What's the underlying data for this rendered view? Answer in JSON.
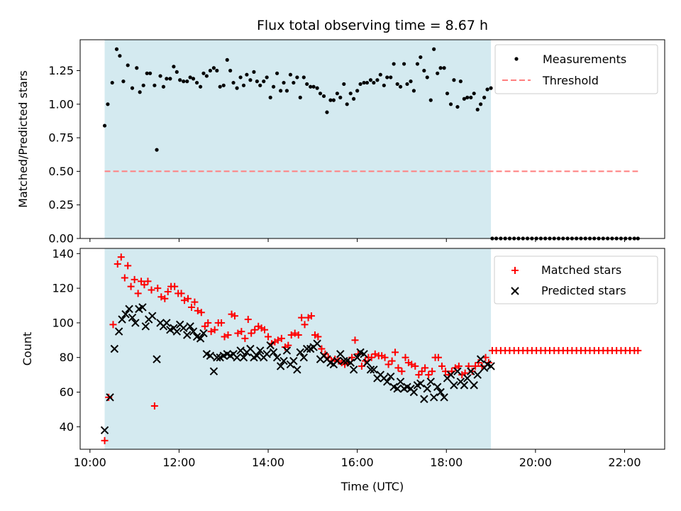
{
  "chart_data": {
    "type": "scatter",
    "title": "Flux total observing time = 8.67 h",
    "xlabel": "Time (UTC)",
    "x_unit": "hours UTC",
    "xlim": [
      9.78,
      22.9
    ],
    "xticks": [
      10,
      12,
      14,
      16,
      18,
      20,
      22
    ],
    "xtick_labels": [
      "10:00",
      "12:00",
      "14:00",
      "16:00",
      "18:00",
      "20:00",
      "22:00"
    ],
    "observing_window": [
      10.33,
      19.0
    ],
    "observing_window_color": "#d4eaf0",
    "panels": [
      {
        "ylabel": "Matched/Predicted stars",
        "ylim": [
          0,
          1.48
        ],
        "yticks": [
          0,
          0.25,
          0.5,
          0.75,
          1.0,
          1.25
        ],
        "ytick_labels": [
          "0.00",
          "0.25",
          "0.50",
          "0.75",
          "1.00",
          "1.25"
        ],
        "legend_position": "upper right",
        "series": [
          {
            "name": "Measurements",
            "marker": "dot",
            "color": "#000000",
            "x": [
              10.33,
              10.4,
              10.5,
              10.6,
              10.67,
              10.75,
              10.85,
              10.95,
              11.05,
              11.12,
              11.2,
              11.28,
              11.35,
              11.45,
              11.5,
              11.58,
              11.65,
              11.72,
              11.8,
              11.88,
              11.95,
              12.02,
              12.1,
              12.18,
              12.25,
              12.32,
              12.4,
              12.48,
              12.55,
              12.62,
              12.7,
              12.78,
              12.85,
              12.92,
              13.0,
              13.08,
              13.15,
              13.22,
              13.3,
              13.38,
              13.45,
              13.52,
              13.6,
              13.68,
              13.75,
              13.82,
              13.9,
              13.97,
              14.05,
              14.12,
              14.2,
              14.28,
              14.35,
              14.42,
              14.5,
              14.57,
              14.65,
              14.72,
              14.8,
              14.87,
              14.95,
              15.02,
              15.1,
              15.17,
              15.25,
              15.32,
              15.4,
              15.47,
              15.55,
              15.62,
              15.7,
              15.77,
              15.85,
              15.92,
              16.0,
              16.07,
              16.15,
              16.22,
              16.3,
              16.37,
              16.45,
              16.52,
              16.6,
              16.67,
              16.75,
              16.82,
              16.9,
              16.97,
              17.05,
              17.12,
              17.2,
              17.27,
              17.35,
              17.42,
              17.5,
              17.57,
              17.65,
              17.72,
              17.8,
              17.87,
              17.95,
              18.02,
              18.1,
              18.17,
              18.25,
              18.32,
              18.4,
              18.47,
              18.55,
              18.62,
              18.7,
              18.77,
              18.85,
              18.92,
              19.0
            ],
            "y": [
              0.84,
              1.0,
              1.16,
              1.41,
              1.36,
              1.17,
              1.29,
              1.12,
              1.27,
              1.09,
              1.14,
              1.23,
              1.23,
              1.14,
              0.66,
              1.21,
              1.13,
              1.19,
              1.19,
              1.28,
              1.24,
              1.18,
              1.17,
              1.17,
              1.2,
              1.19,
              1.16,
              1.13,
              1.23,
              1.21,
              1.25,
              1.27,
              1.25,
              1.13,
              1.14,
              1.33,
              1.25,
              1.16,
              1.12,
              1.2,
              1.14,
              1.22,
              1.18,
              1.24,
              1.17,
              1.14,
              1.17,
              1.2,
              1.05,
              1.13,
              1.23,
              1.1,
              1.16,
              1.1,
              1.22,
              1.16,
              1.2,
              1.05,
              1.2,
              1.15,
              1.13,
              1.13,
              1.12,
              1.08,
              1.06,
              0.94,
              1.03,
              1.03,
              1.08,
              1.05,
              1.15,
              1.0,
              1.08,
              1.04,
              1.1,
              1.15,
              1.16,
              1.16,
              1.18,
              1.16,
              1.18,
              1.22,
              1.14,
              1.2,
              1.2,
              1.3,
              1.15,
              1.13,
              1.3,
              1.15,
              1.17,
              1.1,
              1.3,
              1.35,
              1.25,
              1.2,
              1.03,
              1.41,
              1.23,
              1.27,
              1.27,
              1.08,
              1.0,
              1.18,
              0.98,
              1.17,
              1.04,
              1.05,
              1.05,
              1.08,
              0.96,
              1.0,
              1.05,
              1.11,
              1.12
            ],
            "x_after": [
              19.03,
              19.12,
              19.22,
              19.32,
              19.42,
              19.52,
              19.62,
              19.72,
              19.82,
              19.92,
              20.02,
              20.12,
              20.22,
              20.32,
              20.42,
              20.52,
              20.62,
              20.72,
              20.82,
              20.92,
              21.02,
              21.12,
              21.22,
              21.32,
              21.42,
              21.52,
              21.62,
              21.72,
              21.82,
              21.92,
              22.02,
              22.12,
              22.22,
              22.3
            ],
            "y_after": 0
          },
          {
            "name": "Threshold",
            "marker": "dashed-line",
            "color": "#ff7f7f",
            "x": [
              10.33,
              22.3
            ],
            "y": [
              0.5,
              0.5
            ]
          }
        ],
        "legend": [
          {
            "label": "Measurements",
            "icon": "dot"
          },
          {
            "label": "Threshold",
            "icon": "dashed-line"
          }
        ]
      },
      {
        "ylabel": "Count",
        "ylim": [
          27,
          143
        ],
        "yticks": [
          40,
          60,
          80,
          100,
          120,
          140
        ],
        "ytick_labels": [
          "40",
          "60",
          "80",
          "100",
          "120",
          "140"
        ],
        "legend_position": "upper right",
        "series": [
          {
            "name": "Matched stars",
            "marker": "plus",
            "color": "#ff0000",
            "x": [
              10.33,
              10.42,
              10.52,
              10.62,
              10.7,
              10.78,
              10.85,
              10.92,
              11.0,
              11.08,
              11.15,
              11.22,
              11.3,
              11.38,
              11.45,
              11.52,
              11.6,
              11.68,
              11.75,
              11.82,
              11.9,
              11.98,
              12.05,
              12.12,
              12.2,
              12.28,
              12.35,
              12.42,
              12.5,
              12.58,
              12.65,
              12.72,
              12.8,
              12.88,
              12.95,
              13.02,
              13.1,
              13.18,
              13.25,
              13.32,
              13.4,
              13.48,
              13.55,
              13.62,
              13.7,
              13.78,
              13.85,
              13.92,
              14.0,
              14.08,
              14.15,
              14.22,
              14.3,
              14.38,
              14.45,
              14.52,
              14.6,
              14.68,
              14.75,
              14.82,
              14.9,
              14.97,
              15.05,
              15.12,
              15.2,
              15.28,
              15.35,
              15.42,
              15.5,
              15.58,
              15.65,
              15.72,
              15.8,
              15.88,
              15.95,
              16.02,
              16.1,
              16.18,
              16.25,
              16.32,
              16.4,
              16.48,
              16.55,
              16.62,
              16.7,
              16.78,
              16.85,
              16.92,
              17.0,
              17.08,
              17.15,
              17.22,
              17.3,
              17.38,
              17.45,
              17.52,
              17.6,
              17.68,
              17.75,
              17.82,
              17.9,
              17.98,
              18.05,
              18.12,
              18.2,
              18.28,
              18.35,
              18.42,
              18.5,
              18.58,
              18.65,
              18.72,
              18.8,
              18.88,
              18.95
            ],
            "y": [
              32,
              57,
              99,
              134,
              138,
              126,
              133,
              121,
              125,
              117,
              124,
              122,
              124,
              119,
              52,
              120,
              115,
              114,
              118,
              121,
              121,
              117,
              117,
              113,
              114,
              109,
              112,
              107,
              106,
              98,
              100,
              95,
              96,
              100,
              100,
              92,
              93,
              105,
              104,
              94,
              95,
              91,
              102,
              94,
              96,
              98,
              97,
              96,
              92,
              88,
              89,
              90,
              91,
              86,
              87,
              93,
              94,
              93,
              103,
              99,
              103,
              104,
              93,
              92,
              85,
              82,
              80,
              78,
              79,
              78,
              77,
              76,
              77,
              80,
              90,
              82,
              75,
              78,
              80,
              80,
              82,
              81,
              81,
              80,
              76,
              78,
              83,
              74,
              72,
              80,
              77,
              76,
              75,
              70,
              72,
              74,
              70,
              72,
              80,
              80,
              75,
              72,
              70,
              72,
              74,
              75,
              70,
              71,
              75,
              72,
              75,
              77,
              75,
              80,
              77
            ],
            "x_after": [
              19.03,
              19.12,
              19.22,
              19.32,
              19.42,
              19.52,
              19.62,
              19.72,
              19.82,
              19.92,
              20.02,
              20.12,
              20.22,
              20.32,
              20.42,
              20.52,
              20.62,
              20.72,
              20.82,
              20.92,
              21.02,
              21.12,
              21.22,
              21.32,
              21.42,
              21.52,
              21.62,
              21.72,
              21.82,
              21.92,
              22.02,
              22.12,
              22.22,
              22.3
            ],
            "y_after": 84
          },
          {
            "name": "Predicted stars",
            "marker": "x",
            "color": "#000000",
            "x": [
              10.33,
              10.45,
              10.55,
              10.65,
              10.72,
              10.8,
              10.88,
              10.95,
              11.02,
              11.1,
              11.18,
              11.25,
              11.32,
              11.4,
              11.5,
              11.58,
              11.65,
              11.72,
              11.8,
              11.88,
              11.95,
              12.02,
              12.1,
              12.18,
              12.25,
              12.32,
              12.4,
              12.48,
              12.55,
              12.62,
              12.7,
              12.78,
              12.85,
              12.92,
              13.0,
              13.08,
              13.15,
              13.22,
              13.3,
              13.38,
              13.45,
              13.52,
              13.6,
              13.68,
              13.75,
              13.82,
              13.9,
              13.97,
              14.05,
              14.12,
              14.2,
              14.28,
              14.35,
              14.42,
              14.5,
              14.57,
              14.65,
              14.72,
              14.8,
              14.87,
              14.95,
              15.02,
              15.1,
              15.17,
              15.25,
              15.32,
              15.4,
              15.47,
              15.55,
              15.62,
              15.7,
              15.77,
              15.85,
              15.92,
              16.0,
              16.07,
              16.15,
              16.22,
              16.3,
              16.37,
              16.45,
              16.52,
              16.6,
              16.67,
              16.75,
              16.82,
              16.9,
              16.97,
              17.05,
              17.12,
              17.2,
              17.27,
              17.35,
              17.42,
              17.5,
              17.57,
              17.65,
              17.72,
              17.8,
              17.87,
              17.95,
              18.02,
              18.1,
              18.17,
              18.25,
              18.32,
              18.4,
              18.47,
              18.55,
              18.62,
              18.7,
              18.77,
              18.85,
              18.92,
              19.0
            ],
            "y": [
              38,
              57,
              85,
              95,
              102,
              105,
              108,
              103,
              100,
              108,
              109,
              98,
              102,
              104,
              79,
              100,
              98,
              100,
              96,
              97,
              95,
              99,
              97,
              93,
              98,
              95,
              92,
              91,
              94,
              82,
              81,
              72,
              80,
              80,
              81,
              82,
              81,
              82,
              80,
              84,
              80,
              83,
              85,
              80,
              81,
              84,
              80,
              82,
              87,
              83,
              80,
              75,
              78,
              84,
              76,
              78,
              73,
              83,
              80,
              85,
              85,
              86,
              88,
              79,
              81,
              79,
              77,
              76,
              78,
              82,
              78,
              78,
              77,
              73,
              80,
              83,
              82,
              77,
              73,
              73,
              68,
              70,
              68,
              66,
              69,
              63,
              62,
              66,
              62,
              63,
              62,
              60,
              64,
              65,
              56,
              62,
              66,
              57,
              63,
              60,
              57,
              68,
              70,
              64,
              72,
              66,
              64,
              68,
              72,
              64,
              70,
              79,
              74,
              76,
              75
            ]
          }
        ],
        "legend": [
          {
            "label": "Matched stars",
            "icon": "plus"
          },
          {
            "label": "Predicted stars",
            "icon": "x"
          }
        ]
      }
    ]
  }
}
